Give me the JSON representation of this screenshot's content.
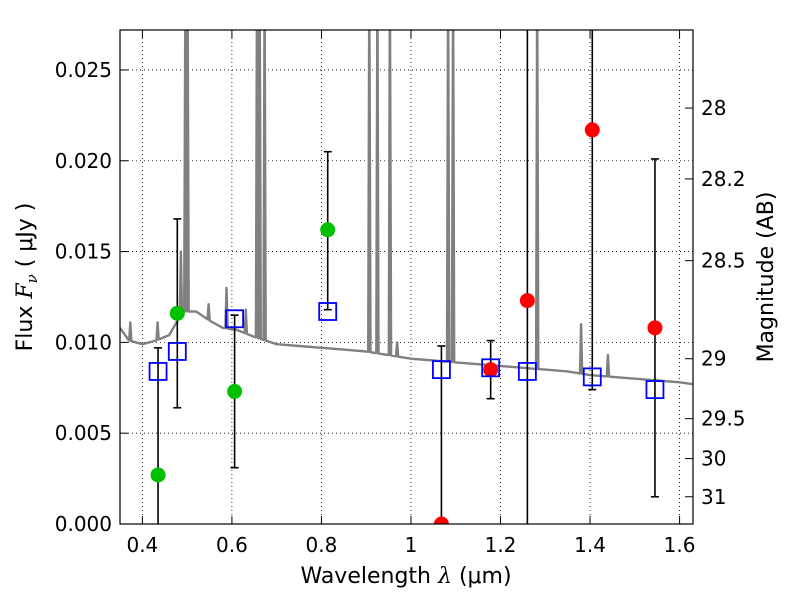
{
  "chart_data": {
    "type": "scatter",
    "xlabel": "Wavelength",
    "xlabel_symbol": "λ",
    "xlabel_unit": "(μm)",
    "ylabel": "Flux",
    "ylabel_symbol": "F",
    "ylabel_subscript": "ν",
    "ylabel_unit": "( μJy )",
    "y2label": "Magnitude (AB)",
    "xlim": [
      0.35,
      1.63
    ],
    "ylim": [
      0.0,
      0.0272
    ],
    "grid": true,
    "x_ticks": [
      0.4,
      0.6,
      0.8,
      1.0,
      1.2,
      1.4,
      1.6
    ],
    "x_tick_labels": [
      "0.4",
      "0.6",
      "0.8",
      "1",
      "1.2",
      "1.4",
      "1.6"
    ],
    "y_ticks": [
      0.0,
      0.005,
      0.01,
      0.015,
      0.02,
      0.025
    ],
    "y_tick_labels": [
      "0.000",
      "0.005",
      "0.010",
      "0.015",
      "0.020",
      "0.025"
    ],
    "y2_ticks": [
      {
        "label": "28",
        "flux": 0.0229
      },
      {
        "label": "28.2",
        "flux": 0.019
      },
      {
        "label": "28.5",
        "flux": 0.0145
      },
      {
        "label": "29",
        "flux": 0.0091
      },
      {
        "label": "29.5",
        "flux": 0.0058
      },
      {
        "label": "30",
        "flux": 0.0036
      },
      {
        "label": "31",
        "flux": 0.0015
      }
    ],
    "colors": {
      "model": "#808080",
      "detection": "#00c000",
      "upper_limit": "#ff0000",
      "model_photometry": "#0000ff",
      "errorbar": "#000000"
    },
    "model_sed": {
      "continuum": [
        [
          0.35,
          0.0108
        ],
        [
          0.37,
          0.0101
        ],
        [
          0.4,
          0.0099
        ],
        [
          0.43,
          0.0101
        ],
        [
          0.46,
          0.0104
        ],
        [
          0.49,
          0.0117
        ],
        [
          0.52,
          0.0117
        ],
        [
          0.55,
          0.0112
        ],
        [
          0.58,
          0.0108
        ],
        [
          0.61,
          0.0107
        ],
        [
          0.65,
          0.0103
        ],
        [
          0.7,
          0.0099
        ],
        [
          0.75,
          0.0098
        ],
        [
          0.8,
          0.0097
        ],
        [
          0.85,
          0.0096
        ],
        [
          0.9,
          0.0095
        ],
        [
          0.95,
          0.0093
        ],
        [
          1.0,
          0.0091
        ],
        [
          1.05,
          0.009
        ],
        [
          1.1,
          0.0089
        ],
        [
          1.15,
          0.0088
        ],
        [
          1.2,
          0.0087
        ],
        [
          1.25,
          0.0086
        ],
        [
          1.3,
          0.0085
        ],
        [
          1.35,
          0.0084
        ],
        [
          1.4,
          0.0082
        ],
        [
          1.45,
          0.0081
        ],
        [
          1.5,
          0.008
        ],
        [
          1.55,
          0.0079
        ],
        [
          1.6,
          0.0078
        ],
        [
          1.63,
          0.0077
        ]
      ],
      "emission_lines": [
        {
          "x": 0.373,
          "peak": 0.0111
        },
        {
          "x": 0.434,
          "peak": 0.0111
        },
        {
          "x": 0.486,
          "peak": 0.015
        },
        {
          "x": 0.496,
          "peak": 0.03
        },
        {
          "x": 0.501,
          "peak": 0.03
        },
        {
          "x": 0.548,
          "peak": 0.0121
        },
        {
          "x": 0.588,
          "peak": 0.013
        },
        {
          "x": 0.631,
          "peak": 0.0118
        },
        {
          "x": 0.656,
          "peak": 0.03
        },
        {
          "x": 0.662,
          "peak": 0.03
        },
        {
          "x": 0.673,
          "peak": 0.03
        },
        {
          "x": 0.907,
          "peak": 0.03
        },
        {
          "x": 0.925,
          "peak": 0.03
        },
        {
          "x": 0.953,
          "peak": 0.03
        },
        {
          "x": 0.969,
          "peak": 0.01
        },
        {
          "x": 1.083,
          "peak": 0.03
        },
        {
          "x": 1.094,
          "peak": 0.03
        },
        {
          "x": 1.282,
          "peak": 0.03
        },
        {
          "x": 1.38,
          "peak": 0.011
        },
        {
          "x": 1.44,
          "peak": 0.0093
        }
      ]
    },
    "observed": [
      {
        "x": 0.435,
        "y": 0.0027,
        "kind": "detection"
      },
      {
        "x": 0.478,
        "y": 0.0116,
        "kind": "detection"
      },
      {
        "x": 0.606,
        "y": 0.0073,
        "kind": "detection"
      },
      {
        "x": 0.814,
        "y": 0.0162,
        "kind": "detection"
      },
      {
        "x": 1.068,
        "y": 0.0,
        "kind": "upper_limit"
      },
      {
        "x": 1.178,
        "y": 0.0085,
        "kind": "upper_limit"
      },
      {
        "x": 1.26,
        "y": 0.0123,
        "kind": "upper_limit"
      },
      {
        "x": 1.405,
        "y": 0.0217,
        "kind": "upper_limit"
      },
      {
        "x": 1.545,
        "y": 0.0108,
        "kind": "upper_limit"
      }
    ],
    "model_photometry": [
      {
        "x": 0.435,
        "y": 0.0084
      },
      {
        "x": 0.478,
        "y": 0.0095
      },
      {
        "x": 0.606,
        "y": 0.0113
      },
      {
        "x": 0.814,
        "y": 0.0117
      },
      {
        "x": 1.068,
        "y": 0.0085
      },
      {
        "x": 1.178,
        "y": 0.0086
      },
      {
        "x": 1.26,
        "y": 0.0084
      },
      {
        "x": 1.405,
        "y": 0.0081
      },
      {
        "x": 1.545,
        "y": 0.0074
      }
    ],
    "errorbars": [
      {
        "x": 0.435,
        "low": 0.0,
        "high": 0.0097
      },
      {
        "x": 0.478,
        "low": 0.0064,
        "high": 0.0168
      },
      {
        "x": 0.606,
        "low": 0.0031,
        "high": 0.0115
      },
      {
        "x": 0.814,
        "low": 0.0118,
        "high": 0.0205
      },
      {
        "x": 1.068,
        "low": 0.0,
        "high": 0.0098
      },
      {
        "x": 1.178,
        "low": 0.0069,
        "high": 0.0101
      },
      {
        "x": 1.26,
        "low": 0.0,
        "high": 0.03
      },
      {
        "x": 1.405,
        "low": 0.0074,
        "high": 0.03
      },
      {
        "x": 1.545,
        "low": 0.0015,
        "high": 0.0201
      }
    ]
  }
}
